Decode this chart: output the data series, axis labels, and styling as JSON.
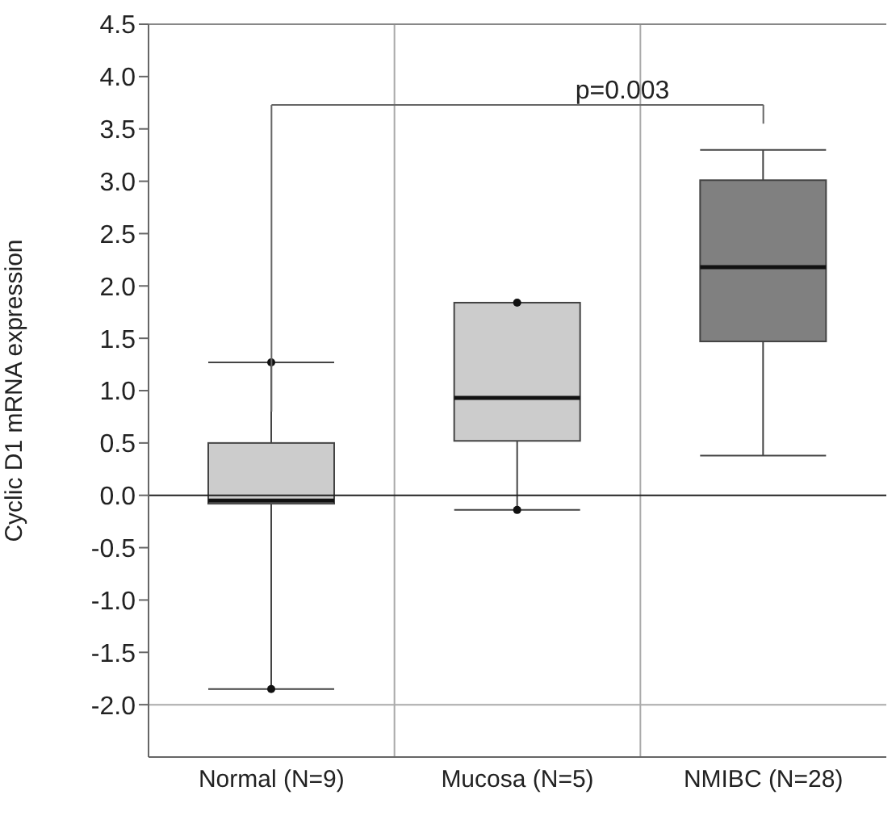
{
  "chart_data": {
    "type": "box",
    "ylabel": "Cyclic D1 mRNA expression",
    "categories": [
      "Normal (N=9)",
      "Mucosa (N=5)",
      "NMIBC (N=28)"
    ],
    "colors": [
      "#cccccc",
      "#cccccc",
      "#808080"
    ],
    "boxes": [
      {
        "low": -1.85,
        "q1": -0.08,
        "median": -0.05,
        "q3": 0.5,
        "high": 1.27,
        "outliers": [
          1.27,
          -1.85
        ]
      },
      {
        "low": -0.14,
        "q1": 0.52,
        "median": 0.93,
        "q3": 1.84,
        "high": 1.84,
        "outliers": [
          1.84,
          -0.14
        ]
      },
      {
        "low": 0.38,
        "q1": 1.47,
        "median": 2.18,
        "q3": 3.01,
        "high": 3.3
      }
    ],
    "ylim": [
      -2.5,
      4.5
    ],
    "yticks": [
      {
        "value": -2,
        "label": "-2.0"
      },
      -1.5,
      {
        "value": -1,
        "label": "-1.0"
      },
      -0.5,
      {
        "value": 0,
        "label": "0.0"
      },
      0.5,
      {
        "value": 1,
        "label": "1.0"
      },
      1.5,
      {
        "value": 2,
        "label": "2.0"
      },
      2.5,
      {
        "value": 3,
        "label": "3.0"
      },
      3.5,
      {
        "value": 4,
        "label": "4.0"
      },
      4.5
    ],
    "grid": "x",
    "ref_lines": [
      {
        "axis": "y",
        "value": 0,
        "color": "#222222"
      },
      {
        "axis": "y",
        "value": -2,
        "color": "#aaaaaa"
      }
    ],
    "annotations": [
      "p=0.003"
    ]
  }
}
